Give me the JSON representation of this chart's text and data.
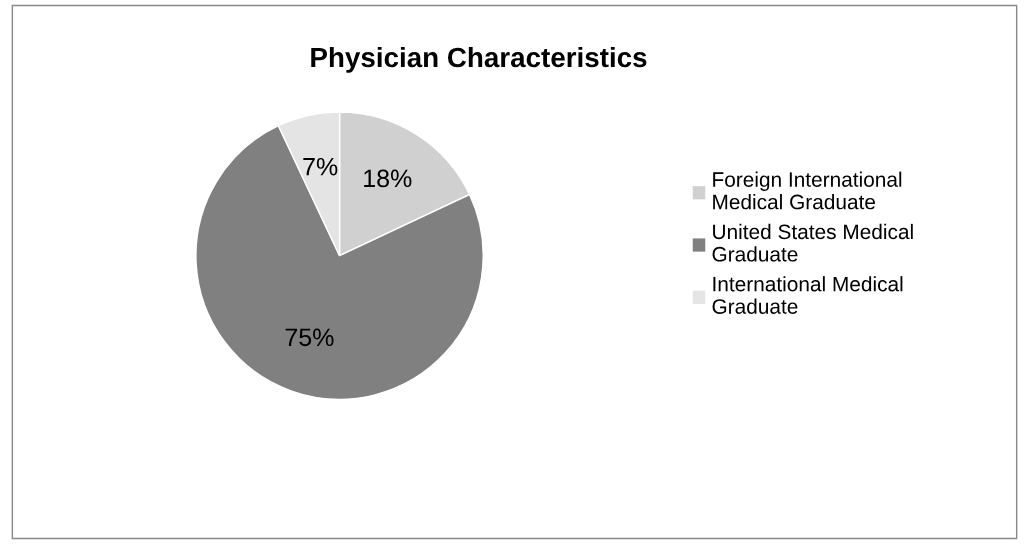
{
  "chart_data": {
    "type": "pie",
    "title": "Physician Characteristics",
    "categories": [
      "Foreign International Medical Graduate",
      "United States Medical Graduate",
      "International Medical Graduate"
    ],
    "values": [
      18,
      75,
      7
    ],
    "colors": [
      "#d0d0d0",
      "#808080",
      "#e4e4e4"
    ],
    "value_labels": [
      "18%",
      "75%",
      "7%"
    ],
    "legend": "right"
  }
}
